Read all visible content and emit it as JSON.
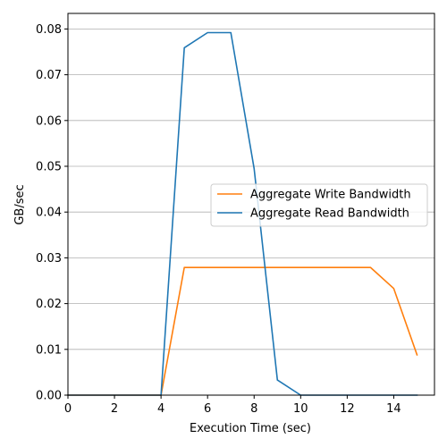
{
  "chart_data": {
    "type": "line",
    "xlabel": "Execution Time (sec)",
    "ylabel": "GB/sec",
    "xlim": [
      0,
      15.75
    ],
    "ylim": [
      0,
      0.0834
    ],
    "x_ticks": [
      0,
      2,
      4,
      6,
      8,
      10,
      12,
      14
    ],
    "x_tick_labels": [
      "0",
      "2",
      "4",
      "6",
      "8",
      "10",
      "12",
      "14"
    ],
    "y_ticks": [
      0,
      0.01,
      0.02,
      0.03,
      0.04,
      0.05,
      0.06,
      0.07,
      0.08
    ],
    "y_tick_labels": [
      "0.00",
      "0.01",
      "0.02",
      "0.03",
      "0.04",
      "0.05",
      "0.06",
      "0.07",
      "0.08"
    ],
    "grid": "horizontal",
    "legend_position": "center-right",
    "x": [
      0,
      1,
      2,
      3,
      4,
      5,
      6,
      7,
      8,
      9,
      10,
      11,
      12,
      13,
      14,
      15
    ],
    "series": [
      {
        "name": "Aggregate Write Bandwidth",
        "color": "#ff7f0e",
        "values": [
          0,
          0,
          0,
          0,
          0,
          0.0279,
          0.0279,
          0.0279,
          0.0279,
          0.0279,
          0.0279,
          0.0279,
          0.0279,
          0.0279,
          0.0233,
          0.0088
        ]
      },
      {
        "name": "Aggregate Read Bandwidth",
        "color": "#1f77b4",
        "values": [
          0,
          0,
          0,
          0,
          0,
          0.0759,
          0.0792,
          0.0792,
          0.0495,
          0.0033,
          0,
          0,
          0,
          0,
          0,
          0
        ]
      }
    ]
  }
}
